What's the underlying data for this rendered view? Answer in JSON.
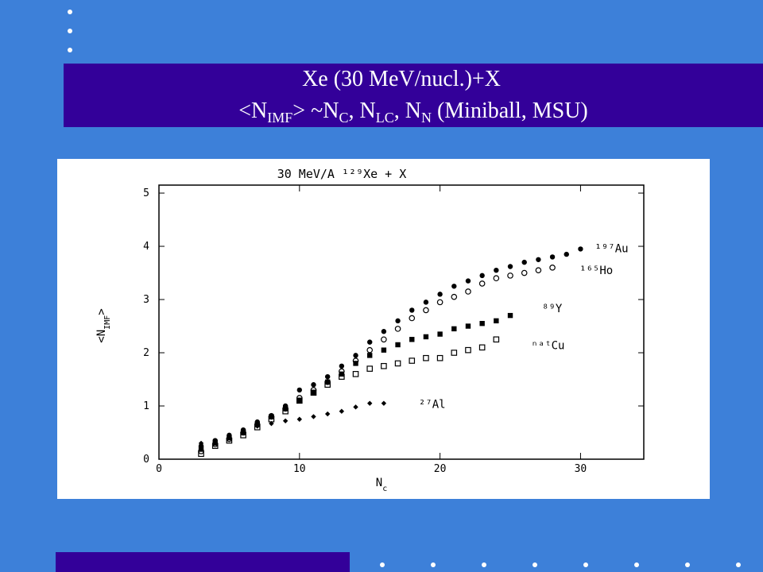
{
  "slide": {
    "title_line1": "Xe (30 MeV/nucl.)+X",
    "title_line2": [
      "<N",
      "IMF",
      "> ~N",
      "C",
      ", N",
      "LC",
      ", N",
      "N",
      " (Miniball, MSU)"
    ]
  },
  "chart_data": {
    "type": "scatter",
    "title": "30 MeV/A ¹²⁹Xe + X",
    "xlabel": [
      "N",
      "c"
    ],
    "ylabel": [
      "<N",
      "IMF",
      ">"
    ],
    "xlim": [
      0,
      34.5
    ],
    "ylim": [
      0,
      5.15
    ],
    "xticks": [
      0,
      10,
      20,
      30
    ],
    "yticks": [
      0,
      1,
      2,
      3,
      4,
      5
    ],
    "series": [
      {
        "name": "¹⁹⁷Au",
        "color": "#000000",
        "marker": "filled-circle",
        "x": [
          3,
          4,
          5,
          6,
          7,
          8,
          9,
          10,
          11,
          12,
          13,
          14,
          15,
          16,
          17,
          18,
          19,
          20,
          21,
          22,
          23,
          24,
          25,
          26,
          27,
          28,
          29,
          30
        ],
        "values": [
          0.25,
          0.35,
          0.45,
          0.55,
          0.7,
          0.82,
          1.0,
          1.3,
          1.4,
          1.55,
          1.75,
          1.95,
          2.2,
          2.4,
          2.6,
          2.8,
          2.95,
          3.1,
          3.25,
          3.35,
          3.45,
          3.55,
          3.62,
          3.7,
          3.75,
          3.8,
          3.85,
          3.95
        ]
      },
      {
        "name": "¹⁶⁵Ho",
        "color": "#000000",
        "marker": "open-circle",
        "x": [
          3,
          4,
          5,
          6,
          7,
          8,
          9,
          10,
          11,
          12,
          13,
          14,
          15,
          16,
          17,
          18,
          19,
          20,
          21,
          22,
          23,
          24,
          25,
          26,
          27,
          28
        ],
        "values": [
          0.15,
          0.28,
          0.38,
          0.5,
          0.65,
          0.8,
          0.95,
          1.15,
          1.3,
          1.45,
          1.65,
          1.85,
          2.05,
          2.25,
          2.45,
          2.65,
          2.8,
          2.95,
          3.05,
          3.15,
          3.3,
          3.4,
          3.45,
          3.5,
          3.55,
          3.6
        ]
      },
      {
        "name": "⁸⁹Y",
        "color": "#000000",
        "marker": "filled-square",
        "x": [
          3,
          4,
          5,
          6,
          7,
          8,
          9,
          10,
          11,
          12,
          13,
          14,
          15,
          16,
          17,
          18,
          19,
          20,
          21,
          22,
          23,
          24,
          25
        ],
        "values": [
          0.2,
          0.3,
          0.4,
          0.5,
          0.65,
          0.8,
          0.95,
          1.1,
          1.25,
          1.45,
          1.6,
          1.8,
          1.95,
          2.05,
          2.15,
          2.25,
          2.3,
          2.35,
          2.45,
          2.5,
          2.55,
          2.6,
          2.7
        ]
      },
      {
        "name": "ⁿᵃᵗCu",
        "color": "#000000",
        "marker": "open-square",
        "x": [
          3,
          4,
          5,
          6,
          7,
          8,
          9,
          10,
          11,
          12,
          13,
          14,
          15,
          16,
          17,
          18,
          19,
          20,
          21,
          22,
          23,
          24
        ],
        "values": [
          0.1,
          0.25,
          0.35,
          0.45,
          0.6,
          0.75,
          0.9,
          1.1,
          1.25,
          1.4,
          1.55,
          1.6,
          1.7,
          1.75,
          1.8,
          1.85,
          1.9,
          1.9,
          2.0,
          2.05,
          2.1,
          2.25
        ]
      },
      {
        "name": "²⁷Al",
        "color": "#000000",
        "marker": "diamond",
        "x": [
          3,
          4,
          5,
          6,
          7,
          8,
          9,
          10,
          11,
          12,
          13,
          14,
          15,
          16
        ],
        "values": [
          0.3,
          0.35,
          0.45,
          0.55,
          0.62,
          0.67,
          0.72,
          0.75,
          0.8,
          0.85,
          0.9,
          0.98,
          1.05,
          1.05
        ]
      }
    ]
  }
}
